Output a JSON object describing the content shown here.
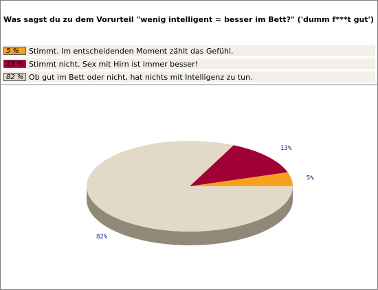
{
  "question": "Was sagst du zu dem Vorurteil \"wenig intelligent = besser im Bett?\" ('dumm f***t gut')",
  "colors": {
    "orange": "#f7a020",
    "crimson": "#a00035",
    "beige": "#e3d9c7",
    "beige_side": "#928878",
    "label": "#202080"
  },
  "legend": [
    {
      "pct": "5 %",
      "text": "Stimmt. Im entscheidenden Moment zählt das Gefühl."
    },
    {
      "pct": "13 %",
      "text": "Stimmt nicht. Sex mit Hirn ist immer besser!"
    },
    {
      "pct": "82 %",
      "text": "Ob gut im Bett oder nicht, hat nichts mit Intelligenz zu tun."
    }
  ],
  "chart_data": {
    "type": "pie",
    "categories": [
      "Stimmt. Im entscheidenden Moment zählt das Gefühl.",
      "Stimmt nicht. Sex mit Hirn ist immer besser!",
      "Ob gut im Bett oder nicht, hat nichts mit Intelligenz zu tun."
    ],
    "values": [
      5,
      13,
      82
    ],
    "labels": [
      "5%",
      "13%",
      "82%"
    ],
    "colors": [
      "#f7a020",
      "#a00035",
      "#e3d9c7"
    ],
    "title": "Was sagst du zu dem Vorurteil \"wenig intelligent = besser im Bett?\" ('dumm f***t gut')"
  }
}
